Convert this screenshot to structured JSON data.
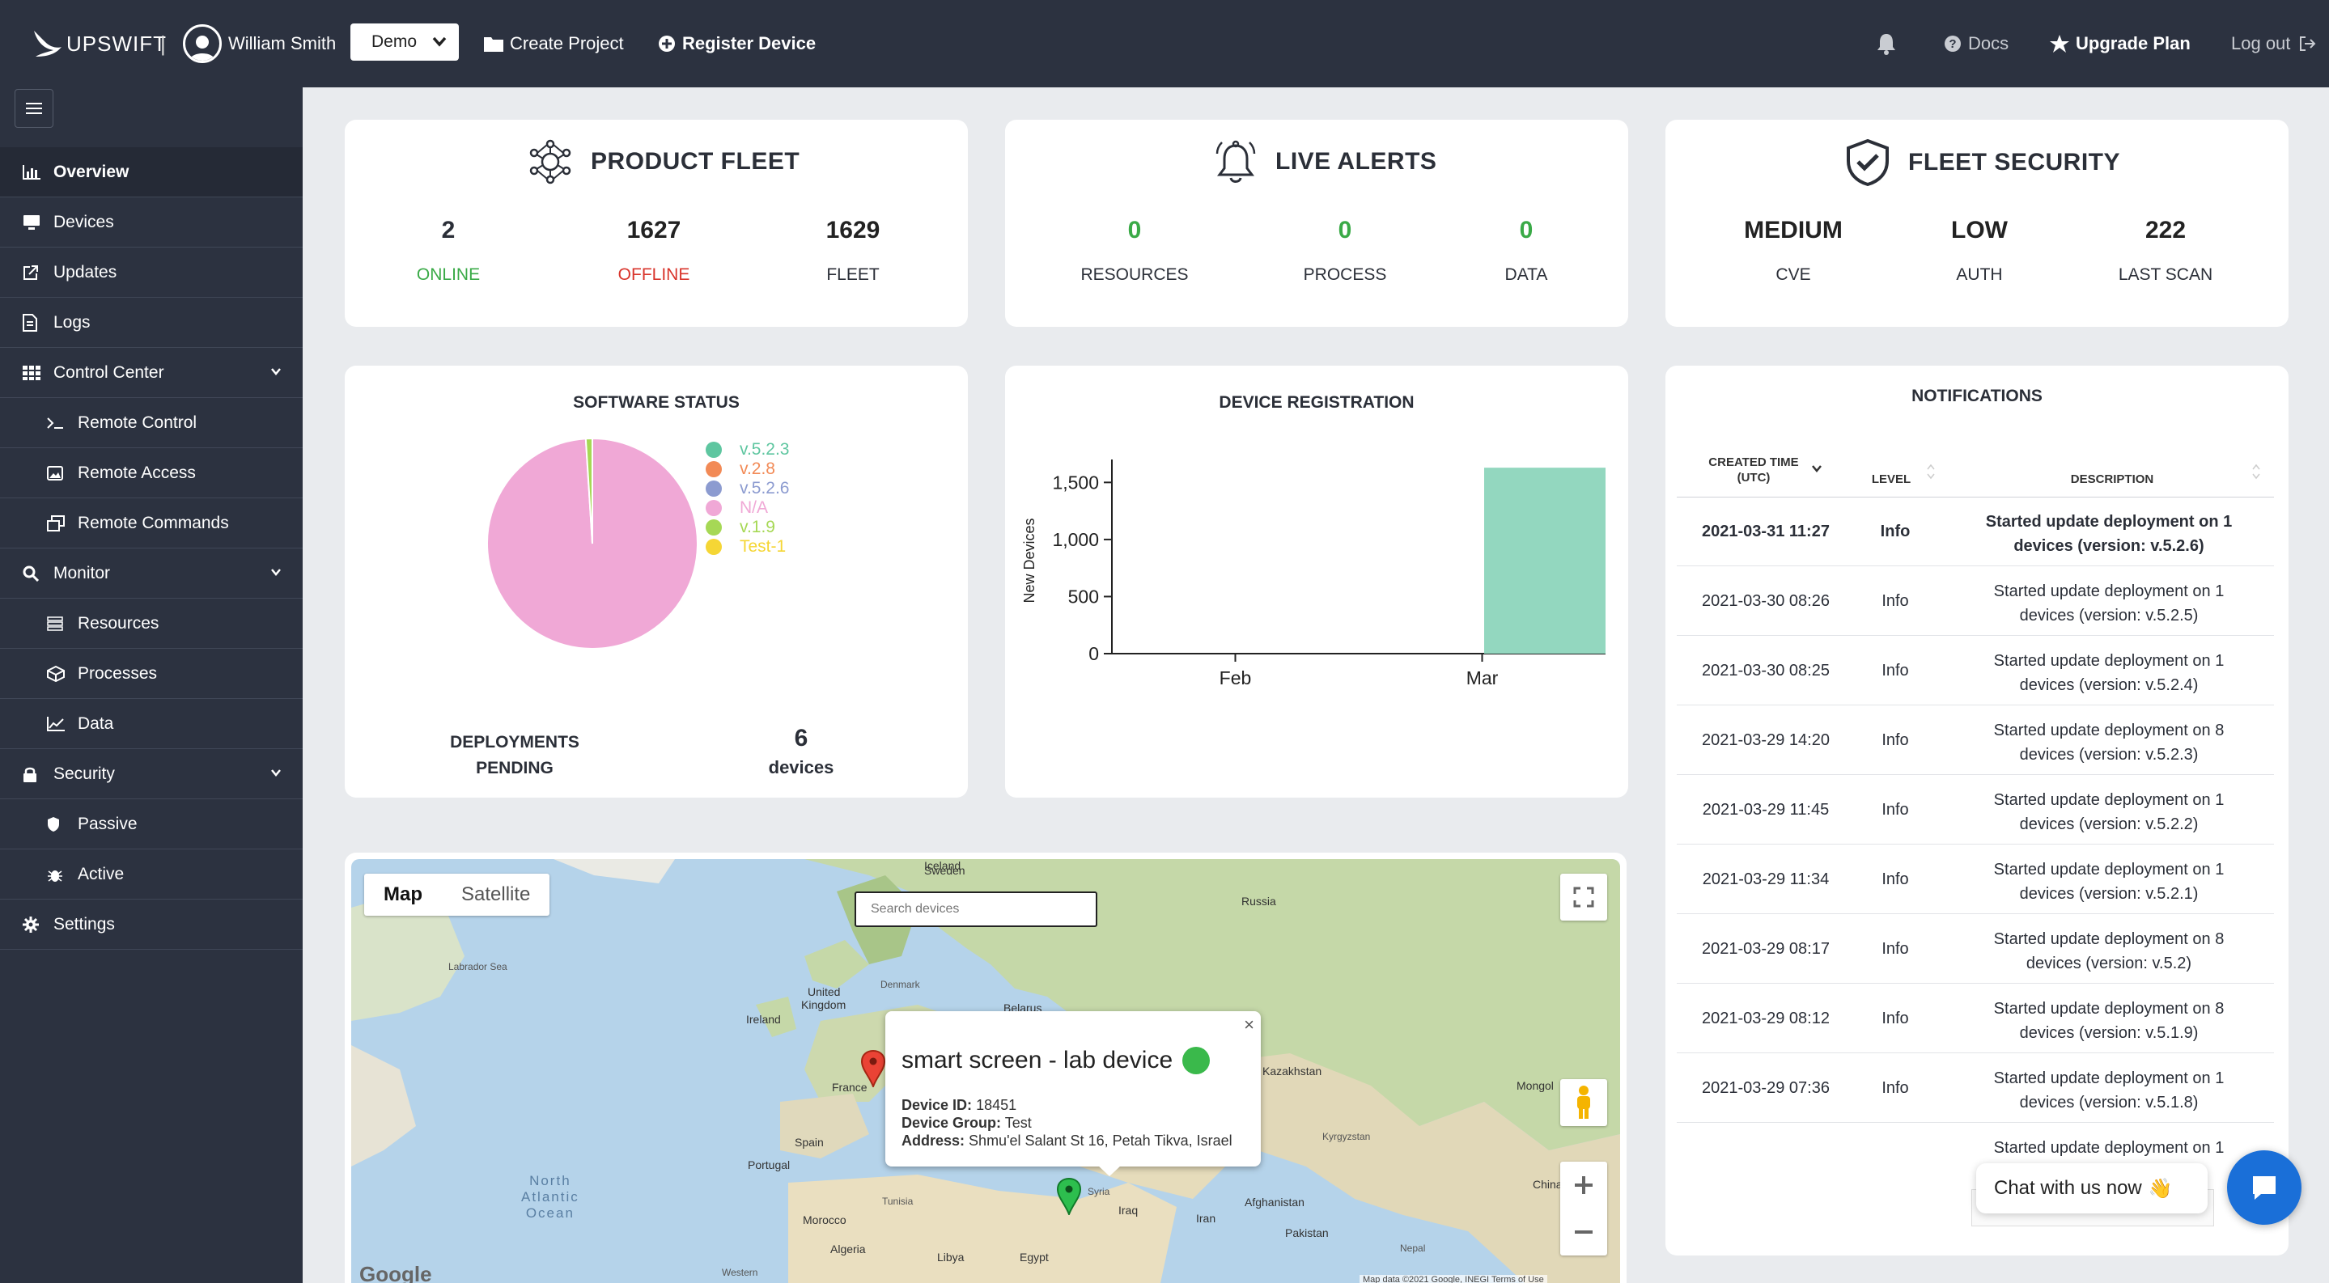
{
  "topbar": {
    "brand": "UPSWIFT",
    "separator": "|",
    "user_name": "William Smith",
    "project_select": "Demo",
    "create_project": "Create Project",
    "register_device": "Register Device",
    "docs": "Docs",
    "upgrade": "Upgrade Plan",
    "logout": "Log out"
  },
  "sidebar": {
    "items": [
      {
        "label": "Overview",
        "icon": "bar-chart-icon"
      },
      {
        "label": "Devices",
        "icon": "monitor-icon"
      },
      {
        "label": "Updates",
        "icon": "external-link-icon"
      },
      {
        "label": "Logs",
        "icon": "document-icon"
      },
      {
        "label": "Control Center",
        "icon": "grid-icon"
      },
      {
        "label": "Remote Control",
        "icon": "terminal-icon"
      },
      {
        "label": "Remote Access",
        "icon": "image-icon"
      },
      {
        "label": "Remote Commands",
        "icon": "windows-icon"
      },
      {
        "label": "Monitor",
        "icon": "search-icon"
      },
      {
        "label": "Resources",
        "icon": "server-icon"
      },
      {
        "label": "Processes",
        "icon": "cubes-icon"
      },
      {
        "label": "Data",
        "icon": "line-chart-icon"
      },
      {
        "label": "Security",
        "icon": "lock-icon"
      },
      {
        "label": "Passive",
        "icon": "shield-icon"
      },
      {
        "label": "Active",
        "icon": "bug-icon"
      },
      {
        "label": "Settings",
        "icon": "gear-icon"
      }
    ]
  },
  "fleet": {
    "title": "PRODUCT FLEET",
    "stats": [
      {
        "value": "2",
        "label": "ONLINE"
      },
      {
        "value": "1627",
        "label": "OFFLINE"
      },
      {
        "value": "1629",
        "label": "FLEET"
      }
    ]
  },
  "alerts": {
    "title": "LIVE ALERTS",
    "stats": [
      {
        "value": "0",
        "label": "RESOURCES"
      },
      {
        "value": "0",
        "label": "PROCESS"
      },
      {
        "value": "0",
        "label": "DATA"
      }
    ]
  },
  "security": {
    "title": "FLEET SECURITY",
    "stats": [
      {
        "value": "MEDIUM",
        "label": "CVE"
      },
      {
        "value": "LOW",
        "label": "AUTH"
      },
      {
        "value": "222",
        "label": "LAST SCAN"
      }
    ]
  },
  "software": {
    "title": "SOFTWARE STATUS",
    "deployments_label_1": "DEPLOYMENTS",
    "deployments_label_2": "PENDING",
    "deployments_value": "6",
    "deployments_unit": "devices"
  },
  "registration": {
    "title": "DEVICE REGISTRATION"
  },
  "chart_data": [
    {
      "type": "pie",
      "title": "SOFTWARE STATUS",
      "slices": [
        {
          "label": "v.5.2.3",
          "value": 0,
          "color": "#5ec6a0"
        },
        {
          "label": "v.2.8",
          "value": 0,
          "color": "#f28a56"
        },
        {
          "label": "v.5.2.6",
          "value": 0,
          "color": "#8c9bd0"
        },
        {
          "label": "N/A",
          "value": 99,
          "color": "#f0a8d6"
        },
        {
          "label": "v.1.9",
          "value": 1,
          "color": "#a6d855"
        },
        {
          "label": "Test-1",
          "value": 0,
          "color": "#f5d635"
        }
      ],
      "legend": "right"
    },
    {
      "type": "bar",
      "title": "DEVICE REGISTRATION",
      "categories": [
        "Feb",
        "Mar"
      ],
      "values": [
        0,
        1629
      ],
      "ylabel": "New Devices",
      "yticks": [
        "0",
        "500",
        "1,000",
        "1,500"
      ],
      "ylim": [
        0,
        1630
      ],
      "color": "#93d7bf",
      "grid": false
    }
  ],
  "notifications": {
    "title": "NOTIFICATIONS",
    "col_time_1": "CREATED TIME",
    "col_time_2": "(UTC)",
    "col_level": "LEVEL",
    "col_desc": "DESCRIPTION",
    "rows": [
      {
        "time": "2021-03-31 11:27",
        "level": "Info",
        "d1": "Started update deployment on 1",
        "d2": "devices (version: v.5.2.6)"
      },
      {
        "time": "2021-03-30 08:26",
        "level": "Info",
        "d1": "Started update deployment on 1",
        "d2": "devices (version: v.5.2.5)"
      },
      {
        "time": "2021-03-30 08:25",
        "level": "Info",
        "d1": "Started update deployment on 1",
        "d2": "devices (version: v.5.2.4)"
      },
      {
        "time": "2021-03-29 14:20",
        "level": "Info",
        "d1": "Started update deployment on 8",
        "d2": "devices (version: v.5.2.3)"
      },
      {
        "time": "2021-03-29 11:45",
        "level": "Info",
        "d1": "Started update deployment on 1",
        "d2": "devices (version: v.5.2.2)"
      },
      {
        "time": "2021-03-29 11:34",
        "level": "Info",
        "d1": "Started update deployment on 1",
        "d2": "devices (version: v.5.2.1)"
      },
      {
        "time": "2021-03-29 08:17",
        "level": "Info",
        "d1": "Started update deployment on 8",
        "d2": "devices (version: v.5.2)"
      },
      {
        "time": "2021-03-29 08:12",
        "level": "Info",
        "d1": "Started update deployment on 8",
        "d2": "devices (version: v.5.1.9)"
      },
      {
        "time": "2021-03-29 07:36",
        "level": "Info",
        "d1": "Started update deployment on 1",
        "d2": "devices (version: v.5.1.8)"
      }
    ]
  },
  "map": {
    "type_map": "Map",
    "type_satellite": "Satellite",
    "search_placeholder": "Search devices",
    "labels": [
      "Sweden",
      "Russia",
      "Labrador Sea",
      "Denmark",
      "United",
      "Kingdom",
      "Belarus",
      "Ireland",
      "Kazakhstan",
      "France",
      "Mongol",
      "Spain",
      "Portugal",
      "Syria",
      "Iraq",
      "Iran",
      "Afghanistan",
      "Pakistan",
      "Tunisia",
      "Morocco",
      "Algeria",
      "Libya",
      "Egypt",
      "China",
      "Kyrgyzstan",
      "Nepal",
      "Western",
      "Iceland"
    ],
    "ocean_1": "North",
    "ocean_2": "Atlantic",
    "ocean_3": "Ocean",
    "footer": "Map data ©2021 Google, INEGI   Terms of Use",
    "google": "Google",
    "popup": {
      "title": "smart screen - lab device",
      "id_label": "Device ID:",
      "id_value": "18451",
      "group_label": "Device Group:",
      "group_value": "Test",
      "address_label": "Address:",
      "address_value": "Shmu'el Salant St 16, Petah Tikva, Israel"
    }
  },
  "chat": {
    "label": "Chat with us now",
    "emoji": "👋"
  },
  "colors": {
    "online": "#3aaa47",
    "offline": "#d9342b",
    "alert_zero": "#3aaa47",
    "sidebar_bg": "#2c3240"
  }
}
